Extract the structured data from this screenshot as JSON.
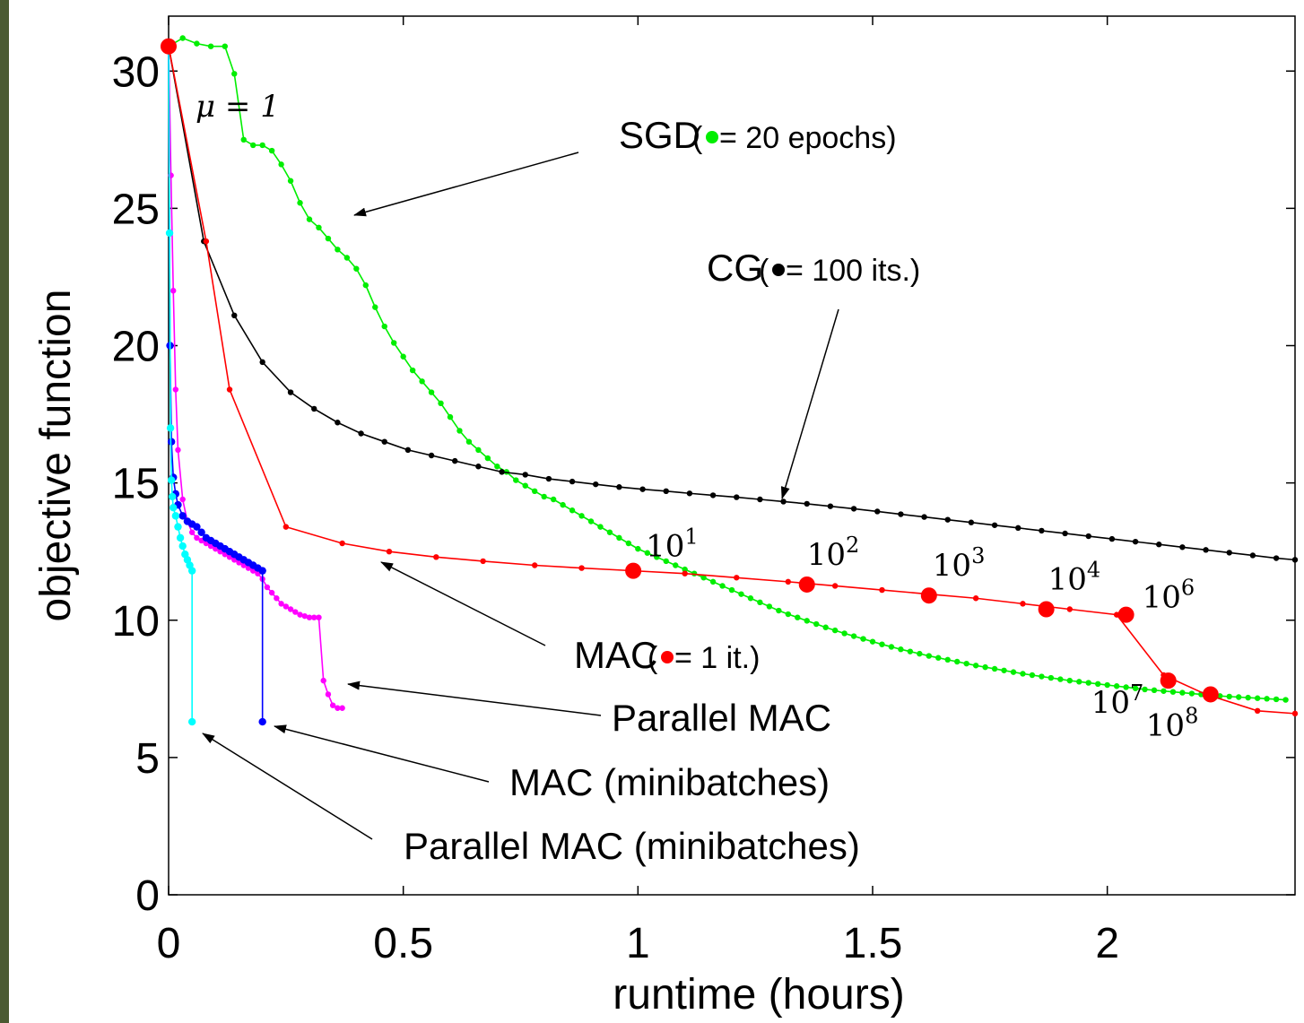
{
  "chart_data": {
    "type": "line",
    "xlabel": "runtime (hours)",
    "ylabel": "objective function",
    "xlim": [
      0,
      2.4
    ],
    "ylim": [
      0,
      32
    ],
    "xticks": [
      0,
      0.5,
      1,
      1.5,
      2
    ],
    "xtick_labels": [
      "0",
      "0.5",
      "1",
      "1.5",
      "2"
    ],
    "yticks": [
      0,
      5,
      10,
      15,
      20,
      25,
      30
    ],
    "ytick_labels": [
      "0",
      "5",
      "10",
      "15",
      "20",
      "25",
      "30"
    ],
    "grid": false,
    "series": [
      {
        "name": "SGD",
        "color": "#00ee00",
        "x": [
          0,
          0.03,
          0.06,
          0.09,
          0.12,
          0.14,
          0.16,
          0.18,
          0.2,
          0.22,
          0.24,
          0.26,
          0.28,
          0.3,
          0.32,
          0.34,
          0.36,
          0.38,
          0.4,
          0.42,
          0.44,
          0.46,
          0.48,
          0.5,
          0.52,
          0.54,
          0.56,
          0.58,
          0.6,
          0.62,
          0.64,
          0.66,
          0.68,
          0.7,
          0.72,
          0.74,
          0.76,
          0.78,
          0.8,
          0.82,
          0.84,
          0.86,
          0.88,
          0.9,
          0.92,
          0.94,
          0.96,
          0.98,
          1.0,
          1.02,
          1.04,
          1.06,
          1.08,
          1.1,
          1.12,
          1.14,
          1.16,
          1.18,
          1.2,
          1.22,
          1.24,
          1.26,
          1.28,
          1.3,
          1.32,
          1.34,
          1.36,
          1.38,
          1.4,
          1.42,
          1.44,
          1.46,
          1.48,
          1.5,
          1.52,
          1.54,
          1.56,
          1.58,
          1.6,
          1.62,
          1.64,
          1.66,
          1.68,
          1.7,
          1.72,
          1.74,
          1.76,
          1.78,
          1.8,
          1.82,
          1.84,
          1.86,
          1.88,
          1.9,
          1.92,
          1.94,
          1.96,
          1.98,
          2.0,
          2.02,
          2.04,
          2.06,
          2.08,
          2.1,
          2.12,
          2.14,
          2.16,
          2.18,
          2.2,
          2.22,
          2.24,
          2.26,
          2.28,
          2.3,
          2.32,
          2.34,
          2.36,
          2.38
        ],
        "y": [
          30.9,
          31.2,
          31.0,
          30.9,
          30.9,
          29.9,
          27.5,
          27.3,
          27.3,
          27.1,
          26.6,
          26.0,
          25.2,
          24.6,
          24.3,
          23.9,
          23.5,
          23.2,
          22.8,
          22.2,
          21.4,
          20.7,
          20.1,
          19.6,
          19.1,
          18.7,
          18.3,
          17.9,
          17.4,
          16.9,
          16.5,
          16.2,
          15.9,
          15.6,
          15.4,
          15.1,
          14.9,
          14.7,
          14.5,
          14.4,
          14.2,
          14.0,
          13.8,
          13.6,
          13.4,
          13.2,
          13.0,
          12.8,
          12.6,
          12.45,
          12.3,
          12.15,
          12.0,
          11.85,
          11.7,
          11.55,
          11.4,
          11.25,
          11.1,
          10.95,
          10.8,
          10.65,
          10.5,
          10.35,
          10.22,
          10.1,
          9.98,
          9.86,
          9.74,
          9.63,
          9.52,
          9.42,
          9.32,
          9.22,
          9.12,
          9.03,
          8.94,
          8.86,
          8.78,
          8.7,
          8.63,
          8.56,
          8.49,
          8.42,
          8.35,
          8.29,
          8.23,
          8.17,
          8.11,
          8.05,
          8.0,
          7.95,
          7.9,
          7.85,
          7.8,
          7.76,
          7.72,
          7.68,
          7.64,
          7.6,
          7.56,
          7.52,
          7.48,
          7.45,
          7.42,
          7.39,
          7.36,
          7.33,
          7.3,
          7.27,
          7.24,
          7.22,
          7.2,
          7.18,
          7.16,
          7.14,
          7.12,
          7.1
        ]
      },
      {
        "name": "CG",
        "color": "#000000",
        "x": [
          0,
          0.075,
          0.14,
          0.2,
          0.26,
          0.31,
          0.36,
          0.41,
          0.46,
          0.51,
          0.56,
          0.61,
          0.66,
          0.71,
          0.76,
          0.81,
          0.86,
          0.91,
          0.96,
          1.01,
          1.06,
          1.11,
          1.16,
          1.21,
          1.26,
          1.31,
          1.36,
          1.41,
          1.46,
          1.51,
          1.56,
          1.61,
          1.66,
          1.71,
          1.76,
          1.81,
          1.86,
          1.91,
          1.96,
          2.01,
          2.06,
          2.11,
          2.16,
          2.21,
          2.26,
          2.31,
          2.36,
          2.4
        ],
        "y": [
          30.9,
          23.8,
          21.1,
          19.4,
          18.3,
          17.7,
          17.2,
          16.8,
          16.5,
          16.2,
          16.0,
          15.8,
          15.6,
          15.4,
          15.3,
          15.15,
          15.05,
          14.95,
          14.85,
          14.77,
          14.7,
          14.62,
          14.55,
          14.48,
          14.4,
          14.32,
          14.24,
          14.15,
          14.06,
          13.96,
          13.86,
          13.76,
          13.66,
          13.56,
          13.46,
          13.36,
          13.26,
          13.16,
          13.06,
          12.96,
          12.86,
          12.76,
          12.66,
          12.56,
          12.46,
          12.36,
          12.26,
          12.2
        ]
      },
      {
        "name": "MAC",
        "color": "#ff0000",
        "x": [
          0,
          0.08,
          0.13,
          0.25,
          0.37,
          0.47,
          0.57,
          0.67,
          0.78,
          0.88,
          0.99,
          1.1,
          1.21,
          1.32,
          1.42,
          1.52,
          1.62,
          1.72,
          1.82,
          1.92,
          2.02,
          2.12,
          2.21,
          2.32,
          2.4
        ],
        "y": [
          30.9,
          23.8,
          18.4,
          13.4,
          12.8,
          12.5,
          12.3,
          12.15,
          12.0,
          11.9,
          11.8,
          11.7,
          11.55,
          11.4,
          11.25,
          11.1,
          10.95,
          10.8,
          10.6,
          10.4,
          10.2,
          8.0,
          7.3,
          6.7,
          6.6
        ]
      },
      {
        "name": "Parallel MAC",
        "color": "#ff00ff",
        "x": [
          0,
          0.005,
          0.01,
          0.015,
          0.02,
          0.03,
          0.04,
          0.05,
          0.06,
          0.07,
          0.08,
          0.09,
          0.1,
          0.11,
          0.12,
          0.13,
          0.14,
          0.15,
          0.16,
          0.17,
          0.18,
          0.19,
          0.2,
          0.21,
          0.22,
          0.23,
          0.24,
          0.25,
          0.26,
          0.27,
          0.28,
          0.29,
          0.3,
          0.31,
          0.32,
          0.33,
          0.34,
          0.35,
          0.36,
          0.37
        ],
        "y": [
          30.9,
          26.2,
          22.0,
          18.4,
          16.2,
          14.4,
          13.6,
          13.2,
          13.0,
          12.9,
          12.8,
          12.7,
          12.6,
          12.5,
          12.4,
          12.3,
          12.2,
          12.1,
          12.0,
          11.9,
          11.8,
          11.7,
          11.5,
          11.2,
          11.0,
          10.8,
          10.6,
          10.5,
          10.4,
          10.3,
          10.2,
          10.15,
          10.1,
          10.1,
          10.1,
          7.8,
          7.3,
          6.9,
          6.8,
          6.8
        ]
      },
      {
        "name": "MAC (minibatches)",
        "color": "#0000ff",
        "x": [
          0,
          0.003,
          0.006,
          0.01,
          0.015,
          0.02,
          0.03,
          0.04,
          0.05,
          0.06,
          0.07,
          0.08,
          0.09,
          0.1,
          0.11,
          0.12,
          0.13,
          0.14,
          0.15,
          0.16,
          0.17,
          0.18,
          0.19,
          0.2,
          0.2
        ],
        "y": [
          30.9,
          20.0,
          16.5,
          15.2,
          14.6,
          14.2,
          13.8,
          13.6,
          13.5,
          13.4,
          13.2,
          13.0,
          12.9,
          12.8,
          12.7,
          12.6,
          12.5,
          12.4,
          12.3,
          12.2,
          12.1,
          12.0,
          11.9,
          11.8,
          6.3
        ]
      },
      {
        "name": "Parallel MAC (minibatches)",
        "color": "#00ffff",
        "x": [
          0,
          0.002,
          0.004,
          0.006,
          0.008,
          0.01,
          0.015,
          0.02,
          0.025,
          0.03,
          0.035,
          0.04,
          0.045,
          0.05,
          0.05
        ],
        "y": [
          30.9,
          24.1,
          17.0,
          15.1,
          14.5,
          14.1,
          13.8,
          13.4,
          13.0,
          12.7,
          12.4,
          12.2,
          12.0,
          11.8,
          6.3
        ]
      }
    ],
    "mac_markers": [
      {
        "x": 0,
        "y": 30.9,
        "label": ""
      },
      {
        "x": 0.99,
        "y": 11.8,
        "label": "10",
        "exp": "1"
      },
      {
        "x": 1.36,
        "y": 11.3,
        "label": "10",
        "exp": "2"
      },
      {
        "x": 1.62,
        "y": 10.9,
        "label": "10",
        "exp": "3"
      },
      {
        "x": 1.87,
        "y": 10.4,
        "label": "10",
        "exp": "4"
      },
      {
        "x": 2.04,
        "y": 10.2,
        "label": "10",
        "exp": "6"
      },
      {
        "x": 2.13,
        "y": 7.8,
        "label": "10",
        "exp": "7"
      },
      {
        "x": 2.22,
        "y": 7.3,
        "label": "10",
        "exp": "8"
      }
    ],
    "annotations": {
      "mu_label": "μ = 1",
      "sgd_text": "SGD",
      "sgd_note": " = 20 epochs)",
      "sgd_paren": "(",
      "cg_text": "CG",
      "cg_note": " = 100 its.)",
      "cg_paren": "(",
      "mac_text": "MAC",
      "mac_note": " = 1 it.)",
      "mac_paren": "(",
      "pmac_text": "Parallel MAC",
      "macmb_text": "MAC (minibatches)",
      "pmacmb_text": "Parallel MAC (minibatches)"
    }
  }
}
